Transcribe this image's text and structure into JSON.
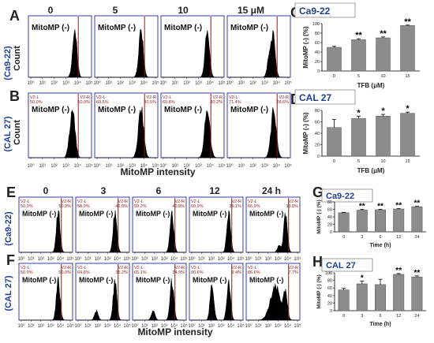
{
  "colors": {
    "panel_border": "#3a3ab0",
    "gate": "#cc0000",
    "gate_text": "#8b1a1a",
    "cell_label": "#1f3f8f",
    "bar": "#8c8c8c",
    "hist": "#000000"
  },
  "labels": {
    "panel_A": "A",
    "panel_B": "B",
    "panel_C": "C",
    "panel_D": "D",
    "panel_E": "E",
    "panel_F": "F",
    "panel_G": "G",
    "panel_H": "H",
    "cell_ca922": "(Ca9-22)",
    "cell_cal27": "(CAL 27)",
    "count": "Count",
    "mitomp_neg": "MitoMP (-)",
    "intensity": "MitoMP intensity",
    "gate_left": "V2-L",
    "gate_right": "V2-R"
  },
  "top_doses": [
    "0",
    "5",
    "10",
    "15 μM"
  ],
  "time_points": [
    "0",
    "3",
    "6",
    "12",
    "24 h"
  ],
  "hist_ticks": [
    "10⁰",
    "10¹",
    "10²",
    "10³",
    "10⁴",
    "10⁵"
  ],
  "gate_B": [
    [
      "50.0%",
      "50.0%"
    ],
    [
      "69.5%",
      "30.5%"
    ],
    [
      "69.8%",
      "30.2%"
    ],
    [
      "71.4%",
      "28.6%"
    ]
  ],
  "gate_E": [
    [
      "50.0%",
      "50.0%"
    ],
    [
      "58.0%",
      "42.0%"
    ],
    [
      "59.2%",
      "40.8%"
    ],
    [
      "60.9%",
      "39.1%"
    ],
    [
      "66.9%",
      "33.0%"
    ]
  ],
  "gate_F": [
    [
      "50.0%",
      "50.0%"
    ],
    [
      "64.8%",
      "35.2%"
    ],
    [
      "65.1%",
      "34.9%"
    ],
    [
      "90.6%",
      "9.4%"
    ],
    [
      "86.6%",
      "7.7%"
    ]
  ],
  "chart_data": [
    {
      "panel": "C",
      "type": "bar",
      "title": "Ca9-22",
      "xlabel": "TFB (μM)",
      "ylabel": "MitoMP (-) (%)",
      "categories": [
        "0",
        "5",
        "10",
        "15"
      ],
      "values": [
        50,
        66,
        70,
        96
      ],
      "errors": [
        2,
        2,
        2,
        1
      ],
      "significance": [
        "",
        "**",
        "**",
        "**"
      ],
      "ylim": [
        0,
        100
      ],
      "yticks": [
        0,
        20,
        40,
        60,
        80,
        100
      ]
    },
    {
      "panel": "D",
      "type": "bar",
      "title": "CAL 27",
      "xlabel": "TFB (μM)",
      "ylabel": "MitoMP (-) (%)",
      "categories": [
        "0",
        "5",
        "10",
        "15"
      ],
      "values": [
        50,
        66,
        70,
        75
      ],
      "errors": [
        14,
        4,
        3,
        2
      ],
      "significance": [
        "",
        "*",
        "*",
        "*"
      ],
      "ylim": [
        0,
        80
      ],
      "yticks": [
        0,
        20,
        40,
        60,
        80
      ]
    },
    {
      "panel": "G",
      "type": "bar",
      "title": "Ca9-22",
      "xlabel": "Time (h)",
      "ylabel": "MitoMP (-) (%)",
      "categories": [
        "0",
        "3",
        "6",
        "12",
        "24"
      ],
      "values": [
        51,
        58,
        59,
        61,
        67
      ],
      "errors": [
        1,
        2,
        1,
        1,
        1
      ],
      "significance": [
        "",
        "**",
        "**",
        "**",
        "**"
      ],
      "ylim": [
        0,
        80
      ],
      "yticks": [
        0,
        20,
        40,
        60,
        80
      ]
    },
    {
      "panel": "H",
      "type": "bar",
      "title": "CAL 27",
      "xlabel": "Time (h)",
      "ylabel": "MitoMP (-) (%)",
      "categories": [
        "0",
        "3",
        "6",
        "12",
        "24"
      ],
      "values": [
        55,
        71,
        69,
        96,
        89
      ],
      "errors": [
        4,
        7,
        14,
        2,
        3
      ],
      "significance": [
        "",
        "*",
        "",
        "**",
        "**"
      ],
      "ylim": [
        0,
        100
      ],
      "yticks": [
        0,
        20,
        40,
        60,
        80,
        100
      ]
    },
    {
      "panel": "A",
      "type": "histogram",
      "xlabel": "",
      "ylabel": "Count",
      "series_names": [
        "0",
        "5",
        "10",
        "15 μM"
      ]
    },
    {
      "panel": "B",
      "type": "histogram",
      "xlabel": "MitoMP intensity",
      "ylabel": "Count",
      "series_names": [
        "0",
        "5",
        "10",
        "15 μM"
      ]
    },
    {
      "panel": "E",
      "type": "histogram",
      "xlabel": "",
      "ylabel": "",
      "series_names": [
        "0",
        "3",
        "6",
        "12",
        "24 h"
      ]
    },
    {
      "panel": "F",
      "type": "histogram",
      "xlabel": "MitoMP intensity",
      "ylabel": "",
      "series_names": [
        "0",
        "3",
        "6",
        "12",
        "24 h"
      ]
    }
  ]
}
